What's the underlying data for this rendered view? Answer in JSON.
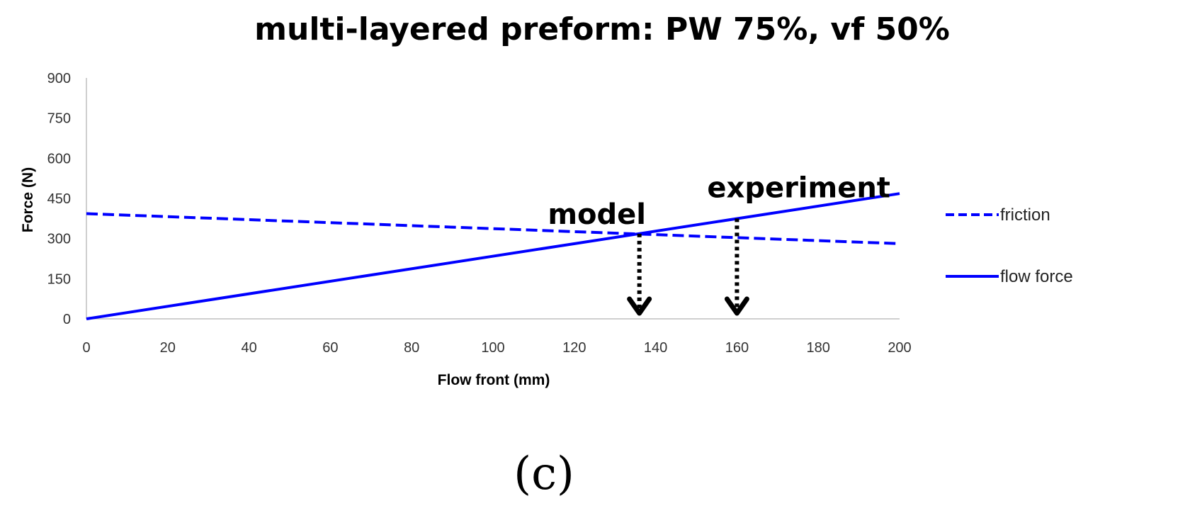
{
  "chart_data": {
    "type": "line",
    "title": "multi-layered preform: PW 75%, vf 50%",
    "xlabel": "Flow front (mm)",
    "ylabel": "Force (N)",
    "xlim": [
      0,
      200
    ],
    "ylim": [
      0,
      900
    ],
    "xticks": [
      0,
      20,
      40,
      60,
      80,
      100,
      120,
      140,
      160,
      180,
      200
    ],
    "yticks": [
      0,
      150,
      300,
      450,
      600,
      750,
      900
    ],
    "grid": false,
    "legend_position": "right",
    "series": [
      {
        "name": "friction",
        "style": "dashed",
        "color": "#0000FF",
        "x": [
          0,
          200
        ],
        "y": [
          393,
          281
        ]
      },
      {
        "name": "flow force",
        "style": "solid",
        "color": "#0000FF",
        "x": [
          0,
          200
        ],
        "y": [
          0,
          468
        ]
      }
    ],
    "annotations": [
      {
        "text": "model",
        "x": 136,
        "y_from": 318,
        "y_to": 0
      },
      {
        "text": "experiment",
        "x": 160,
        "y_from": 375,
        "y_to": 0
      }
    ],
    "panel_label": "(c)"
  }
}
